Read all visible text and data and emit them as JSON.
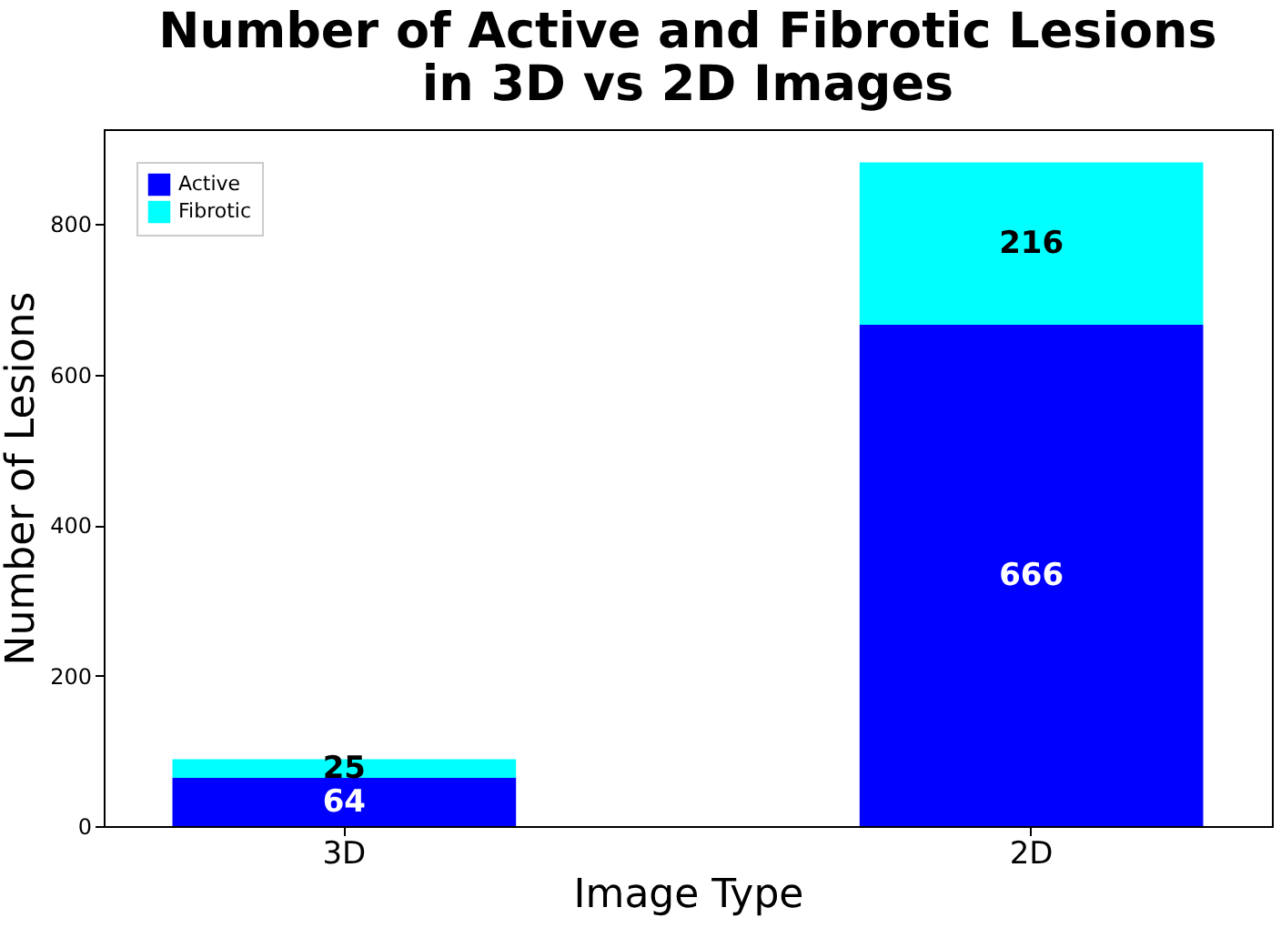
{
  "chart_data": {
    "type": "bar",
    "title": "Number of Active and Fibrotic Lesions\nin 3D vs 2D Images",
    "xlabel": "Image Type",
    "ylabel": "Number of Lesions",
    "categories": [
      "3D",
      "2D"
    ],
    "stacked": true,
    "data_labels": true,
    "legend": "top left",
    "series": [
      {
        "name": "Active",
        "color": "#0000ff",
        "values": [
          64,
          666
        ]
      },
      {
        "name": "Fibrotic",
        "color": "#00ffff",
        "values": [
          25,
          216
        ]
      }
    ],
    "ylim": [
      0,
      926
    ],
    "yticks": [
      0,
      200,
      400,
      600,
      800
    ],
    "grid": false
  }
}
